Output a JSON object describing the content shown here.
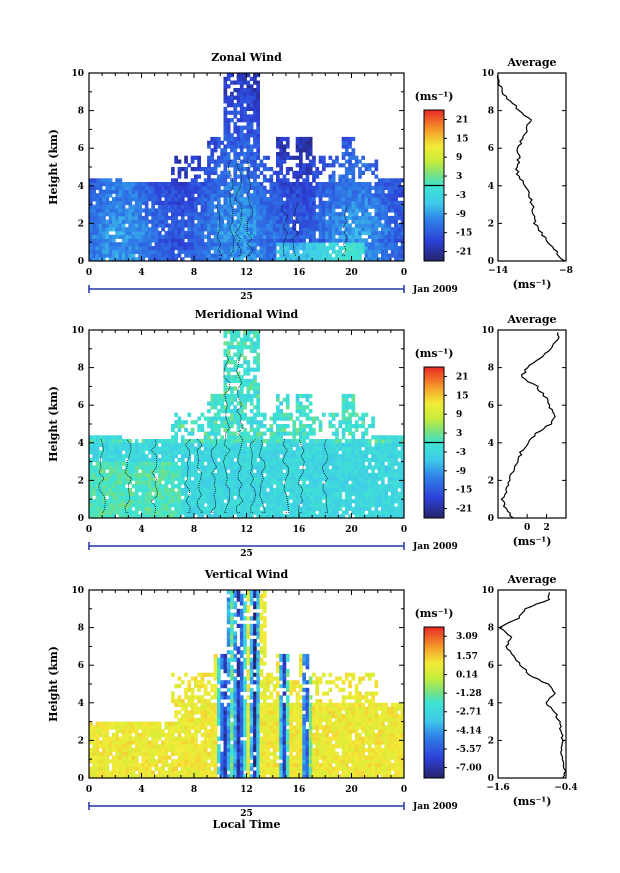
{
  "figure": {
    "xlabel_bottom": "Local Time",
    "date_label": "Jan 2009",
    "day_label": "25",
    "height_label": "Height (km)",
    "unit_label": "(ms⁻¹)",
    "avg_title": "Average",
    "avg_xlabel": "(ms⁻¹)"
  },
  "chart_data": [
    {
      "type": "heatmap",
      "title": "Zonal Wind",
      "xlabel": "",
      "ylabel": "Height (km)",
      "x_ticks": [
        "0",
        "4",
        "8",
        "12",
        "16",
        "20",
        "0"
      ],
      "x_tick_values": [
        0,
        4,
        8,
        12,
        16,
        20,
        24
      ],
      "xlim": [
        0,
        24
      ],
      "ylim": [
        0,
        10
      ],
      "y_ticks": [
        0,
        2,
        4,
        6,
        8,
        10
      ],
      "colorbar": {
        "unit": "(ms⁻¹)",
        "range": [
          -24,
          24
        ],
        "tick_labels": [
          "21",
          "15",
          "9",
          "3",
          "-3",
          "-9",
          "-15",
          "-21"
        ],
        "tick_values": [
          21,
          15,
          9,
          3,
          -3,
          -9,
          -15,
          -21
        ]
      },
      "profile": {
        "title": "Average",
        "xlabel": "(ms⁻¹)",
        "xlim": [
          -14,
          -8
        ],
        "x_ticks": [
          "−14",
          "−8"
        ],
        "x_tick_values": [
          -14,
          -8
        ],
        "heights": [
          0,
          0.5,
          1,
          1.5,
          2,
          2.5,
          3,
          3.5,
          4,
          4.5,
          5,
          5.5,
          6,
          6.5,
          7,
          7.5,
          8,
          8.5,
          9,
          9.5
        ],
        "values": [
          -8.2,
          -8.8,
          -9.5,
          -10.2,
          -10.8,
          -10.9,
          -11.0,
          -11.2,
          -11.6,
          -12.2,
          -12.4,
          -12.1,
          -12.3,
          -11.8,
          -11.5,
          -11.2,
          -12.0,
          -13.0,
          -13.6,
          -14.0
        ]
      }
    },
    {
      "type": "heatmap",
      "title": "Meridional Wind",
      "xlabel": "",
      "ylabel": "Height (km)",
      "x_ticks": [
        "0",
        "4",
        "8",
        "12",
        "16",
        "20",
        "0"
      ],
      "x_tick_values": [
        0,
        4,
        8,
        12,
        16,
        20,
        24
      ],
      "xlim": [
        0,
        24
      ],
      "ylim": [
        0,
        10
      ],
      "y_ticks": [
        0,
        2,
        4,
        6,
        8,
        10
      ],
      "colorbar": {
        "unit": "(ms⁻¹)",
        "range": [
          -24,
          24
        ],
        "tick_labels": [
          "21",
          "15",
          "9",
          "3",
          "-3",
          "-9",
          "-15",
          "-21"
        ],
        "tick_values": [
          21,
          15,
          9,
          3,
          -3,
          -9,
          -15,
          -21
        ]
      },
      "profile": {
        "title": "Average",
        "xlabel": "(ms⁻¹)",
        "xlim": [
          -3,
          4
        ],
        "x_ticks": [
          "0",
          "2"
        ],
        "x_tick_values": [
          0,
          2
        ],
        "heights": [
          0,
          0.5,
          1,
          1.5,
          2,
          2.5,
          3,
          3.5,
          4,
          4.5,
          5,
          5.5,
          6,
          6.5,
          7,
          7.5,
          8,
          8.5,
          9,
          9.5
        ],
        "values": [
          -1.5,
          -2.2,
          -2.6,
          -2.1,
          -1.9,
          -1.4,
          -1.0,
          -0.6,
          0.2,
          1.0,
          2.4,
          2.8,
          2.2,
          1.8,
          1.0,
          -0.6,
          0.0,
          1.4,
          2.4,
          3.2
        ]
      }
    },
    {
      "type": "heatmap",
      "title": "Vertical Wind",
      "xlabel": "Local Time",
      "ylabel": "Height (km)",
      "x_ticks": [
        "0",
        "4",
        "8",
        "12",
        "16",
        "20",
        "0"
      ],
      "x_tick_values": [
        0,
        4,
        8,
        12,
        16,
        20,
        24
      ],
      "xlim": [
        0,
        24
      ],
      "ylim": [
        0,
        10
      ],
      "y_ticks": [
        0,
        2,
        4,
        6,
        8,
        10
      ],
      "colorbar": {
        "unit": "(ms⁻¹)",
        "range": [
          -7.8,
          3.8
        ],
        "tick_labels": [
          "3.09",
          "1.57",
          "0.14",
          "-1.28",
          "-2.71",
          "-4.14",
          "-5.57",
          "-7.00"
        ],
        "tick_values": [
          3.09,
          1.57,
          0.14,
          -1.28,
          -2.71,
          -4.14,
          -5.57,
          -7.0
        ]
      },
      "profile": {
        "title": "Average",
        "xlabel": "(ms⁻¹)",
        "xlim": [
          -1.6,
          -0.4
        ],
        "x_ticks": [
          "−1.6",
          "−0.4"
        ],
        "x_tick_values": [
          -1.6,
          -0.4
        ],
        "heights": [
          0,
          0.5,
          1,
          1.5,
          2,
          2.5,
          3,
          3.5,
          4,
          4.5,
          5,
          5.5,
          6,
          6.5,
          7,
          7.5,
          8,
          8.5,
          9,
          9.5
        ],
        "values": [
          -0.45,
          -0.42,
          -0.44,
          -0.48,
          -0.45,
          -0.5,
          -0.52,
          -0.6,
          -0.75,
          -0.58,
          -0.72,
          -1.05,
          -1.2,
          -1.3,
          -1.45,
          -1.35,
          -1.55,
          -1.25,
          -1.1,
          -0.7
        ]
      }
    }
  ]
}
